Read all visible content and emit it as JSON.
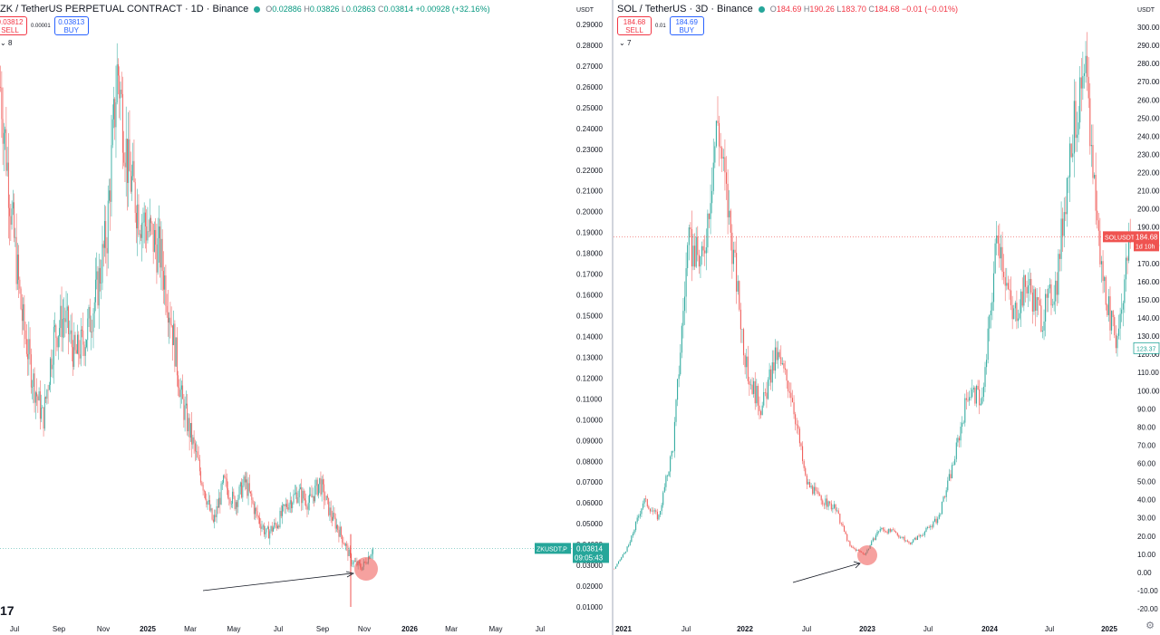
{
  "left": {
    "symbol": "ZK / TetherUS PERPETUAL CONTRACT · 1D · Binance",
    "ohlc": {
      "o": "0.02886",
      "h": "0.03826",
      "l": "0.02863",
      "c": "0.03814",
      "chg": "+0.00928 (+32.16%)"
    },
    "sell": {
      "price": "0.03812",
      "label": "SELL"
    },
    "spread": "0.00001",
    "buy": {
      "price": "0.03813",
      "label": "BUY"
    },
    "indicators": "8",
    "currency": "USDT",
    "last_tag": {
      "ticker": "ZKUSDT.P",
      "price": "0.03814",
      "timer": "09:05:43"
    },
    "logo": "17",
    "colors": {
      "up": "#26a69a",
      "down": "#ef5350",
      "last": "#26a69a",
      "marker": "#ef5350"
    }
  },
  "right": {
    "symbol": "SOL / TetherUS · 3D · Binance",
    "ohlc": {
      "o": "184.69",
      "h": "190.26",
      "l": "183.70",
      "c": "184.68",
      "chg": "−0.01 (−0.01%)"
    },
    "sell": {
      "price": "184.68",
      "label": "SELL"
    },
    "spread": "0.01",
    "buy": {
      "price": "184.69",
      "label": "BUY"
    },
    "indicators": "7",
    "currency": "USDT",
    "last_tag": {
      "ticker": "SOLUSDT",
      "price": "184.68",
      "timer": "1d 10h"
    },
    "low_tag": "123.37",
    "colors": {
      "up": "#26a69a",
      "down": "#ef5350",
      "last": "#ef5350",
      "marker": "#ef5350"
    }
  },
  "chart_data": [
    {
      "type": "candlestick",
      "title": "ZK / TetherUS PERPETUAL CONTRACT · 1D · Binance",
      "y_unit": "USDT",
      "y_ticks": [
        "0.29000",
        "0.28000",
        "0.27000",
        "0.26000",
        "0.25000",
        "0.24000",
        "0.23000",
        "0.22000",
        "0.21000",
        "0.20000",
        "0.19000",
        "0.18000",
        "0.17000",
        "0.16000",
        "0.15000",
        "0.14000",
        "0.13000",
        "0.12000",
        "0.11000",
        "0.10000",
        "0.09000",
        "0.08000",
        "0.07000",
        "0.06000",
        "0.05000",
        "0.04000",
        "0.03000",
        "0.02000",
        "0.01000"
      ],
      "x_ticks": [
        "Jul",
        "Sep",
        "Nov",
        "2025",
        "Mar",
        "May",
        "Jul",
        "Sep",
        "Nov",
        "2026",
        "Mar",
        "May",
        "Jul"
      ],
      "last_price": 0.03814,
      "approx_path": [
        {
          "date": "2024-06",
          "close": 0.26
        },
        {
          "date": "2024-06",
          "close": 0.2
        },
        {
          "date": "2024-07",
          "close": 0.15
        },
        {
          "date": "2024-07",
          "close": 0.12
        },
        {
          "date": "2024-08",
          "close": 0.1
        },
        {
          "date": "2024-08",
          "close": 0.14
        },
        {
          "date": "2024-09",
          "close": 0.15
        },
        {
          "date": "2024-09",
          "close": 0.13
        },
        {
          "date": "2024-10",
          "close": 0.14
        },
        {
          "date": "2024-11",
          "close": 0.16
        },
        {
          "date": "2024-11",
          "close": 0.19
        },
        {
          "date": "2024-12",
          "close": 0.27
        },
        {
          "date": "2024-12",
          "close": 0.22
        },
        {
          "date": "2024-12",
          "close": 0.2
        },
        {
          "date": "2025-01",
          "close": 0.19
        },
        {
          "date": "2025-01",
          "close": 0.18
        },
        {
          "date": "2025-02",
          "close": 0.15
        },
        {
          "date": "2025-02",
          "close": 0.11
        },
        {
          "date": "2025-03",
          "close": 0.09
        },
        {
          "date": "2025-03",
          "close": 0.07
        },
        {
          "date": "2025-04",
          "close": 0.05
        },
        {
          "date": "2025-04",
          "close": 0.07
        },
        {
          "date": "2025-05",
          "close": 0.06
        },
        {
          "date": "2025-05",
          "close": 0.07
        },
        {
          "date": "2025-06",
          "close": 0.055
        },
        {
          "date": "2025-06",
          "close": 0.045
        },
        {
          "date": "2025-07",
          "close": 0.05
        },
        {
          "date": "2025-07",
          "close": 0.06
        },
        {
          "date": "2025-08",
          "close": 0.065
        },
        {
          "date": "2025-08",
          "close": 0.06
        },
        {
          "date": "2025-09",
          "close": 0.07
        },
        {
          "date": "2025-09",
          "close": 0.055
        },
        {
          "date": "2025-10",
          "close": 0.045
        },
        {
          "date": "2025-10",
          "close": 0.032
        },
        {
          "date": "2025-10",
          "close": 0.029
        },
        {
          "date": "2025-11",
          "close": 0.038
        }
      ],
      "annotations": [
        "arrow pointing to current low",
        "red circle around current price"
      ]
    },
    {
      "type": "candlestick",
      "title": "SOL / TetherUS · 3D · Binance",
      "y_unit": "USDT",
      "y_ticks": [
        "300.00",
        "290.00",
        "280.00",
        "270.00",
        "260.00",
        "250.00",
        "240.00",
        "230.00",
        "220.00",
        "210.00",
        "200.00",
        "190.00",
        "180.00",
        "170.00",
        "160.00",
        "150.00",
        "140.00",
        "130.00",
        "120.00",
        "110.00",
        "100.00",
        "90.00",
        "80.00",
        "70.00",
        "60.00",
        "50.00",
        "40.00",
        "30.00",
        "20.00",
        "10.00",
        "0.00",
        "-10.00",
        "-20.00"
      ],
      "x_ticks": [
        "2021",
        "Jul",
        "2022",
        "Jul",
        "2023",
        "Jul",
        "2024",
        "Jul",
        "2025"
      ],
      "last_price": 184.68,
      "approx_path": [
        {
          "date": "2021-01",
          "close": 2
        },
        {
          "date": "2021-03",
          "close": 15
        },
        {
          "date": "2021-05",
          "close": 40
        },
        {
          "date": "2021-07",
          "close": 30
        },
        {
          "date": "2021-08",
          "close": 70
        },
        {
          "date": "2021-09",
          "close": 180
        },
        {
          "date": "2021-10",
          "close": 170
        },
        {
          "date": "2021-11",
          "close": 250
        },
        {
          "date": "2021-12",
          "close": 180
        },
        {
          "date": "2022-01",
          "close": 110
        },
        {
          "date": "2022-02",
          "close": 90
        },
        {
          "date": "2022-03",
          "close": 120
        },
        {
          "date": "2022-04",
          "close": 100
        },
        {
          "date": "2022-05",
          "close": 50
        },
        {
          "date": "2022-07",
          "close": 40
        },
        {
          "date": "2022-09",
          "close": 35
        },
        {
          "date": "2022-11",
          "close": 14
        },
        {
          "date": "2022-12",
          "close": 10
        },
        {
          "date": "2023-02",
          "close": 24
        },
        {
          "date": "2023-04",
          "close": 22
        },
        {
          "date": "2023-06",
          "close": 16
        },
        {
          "date": "2023-08",
          "close": 22
        },
        {
          "date": "2023-10",
          "close": 30
        },
        {
          "date": "2023-11",
          "close": 60
        },
        {
          "date": "2023-12",
          "close": 100
        },
        {
          "date": "2024-01",
          "close": 95
        },
        {
          "date": "2024-03",
          "close": 190
        },
        {
          "date": "2024-04",
          "close": 140
        },
        {
          "date": "2024-06",
          "close": 160
        },
        {
          "date": "2024-08",
          "close": 140
        },
        {
          "date": "2024-10",
          "close": 160
        },
        {
          "date": "2024-11",
          "close": 240
        },
        {
          "date": "2025-01",
          "close": 270
        },
        {
          "date": "2025-02",
          "close": 170
        },
        {
          "date": "2025-03",
          "close": 125
        },
        {
          "date": "2025-04",
          "close": 184.68
        }
      ],
      "annotations": [
        "arrow pointing to cycle low",
        "red circle around 2022 bottom",
        "horizontal line at last price"
      ]
    }
  ]
}
